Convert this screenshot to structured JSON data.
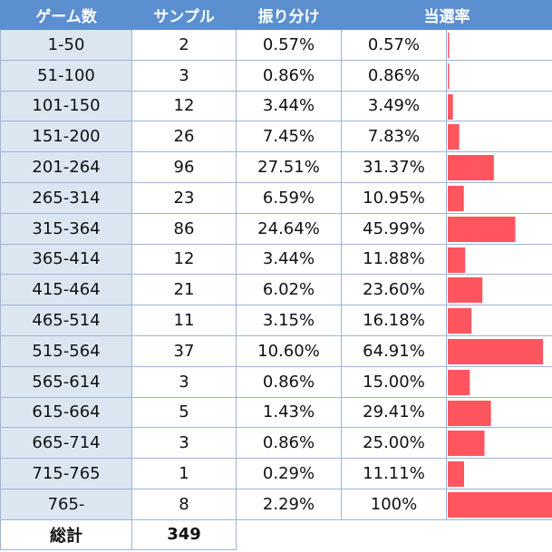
{
  "table": {
    "header": [
      "ゲーム数",
      "サンプル",
      "振り分け",
      "当選率"
    ],
    "rows": [
      [
        "1-50",
        "2",
        "0.57%",
        "0.57%"
      ],
      [
        "51-100",
        "3",
        "0.86%",
        "0.86%"
      ],
      [
        "101-150",
        "12",
        "3.44%",
        "3.49%"
      ],
      [
        "151-200",
        "26",
        "7.45%",
        "7.83%"
      ],
      [
        "201-264",
        "96",
        "27.51%",
        "31.37%"
      ],
      [
        "265-314",
        "23",
        "6.59%",
        "10.95%"
      ],
      [
        "315-364",
        "86",
        "24.64%",
        "45.99%"
      ],
      [
        "365-414",
        "12",
        "3.44%",
        "11.88%"
      ],
      [
        "415-464",
        "21",
        "6.02%",
        "23.60%"
      ],
      [
        "465-514",
        "11",
        "3.15%",
        "16.18%"
      ],
      [
        "515-564",
        "37",
        "10.60%",
        "64.91%"
      ],
      [
        "565-614",
        "3",
        "0.86%",
        "15.00%"
      ],
      [
        "615-664",
        "5",
        "1.43%",
        "29.41%"
      ],
      [
        "665-714",
        "3",
        "0.86%",
        "25.00%"
      ],
      [
        "715-765",
        "1",
        "0.29%",
        "11.11%"
      ],
      [
        "765-",
        "8",
        "2.29%",
        "100%"
      ]
    ],
    "total": [
      "総計",
      "349"
    ]
  }
}
